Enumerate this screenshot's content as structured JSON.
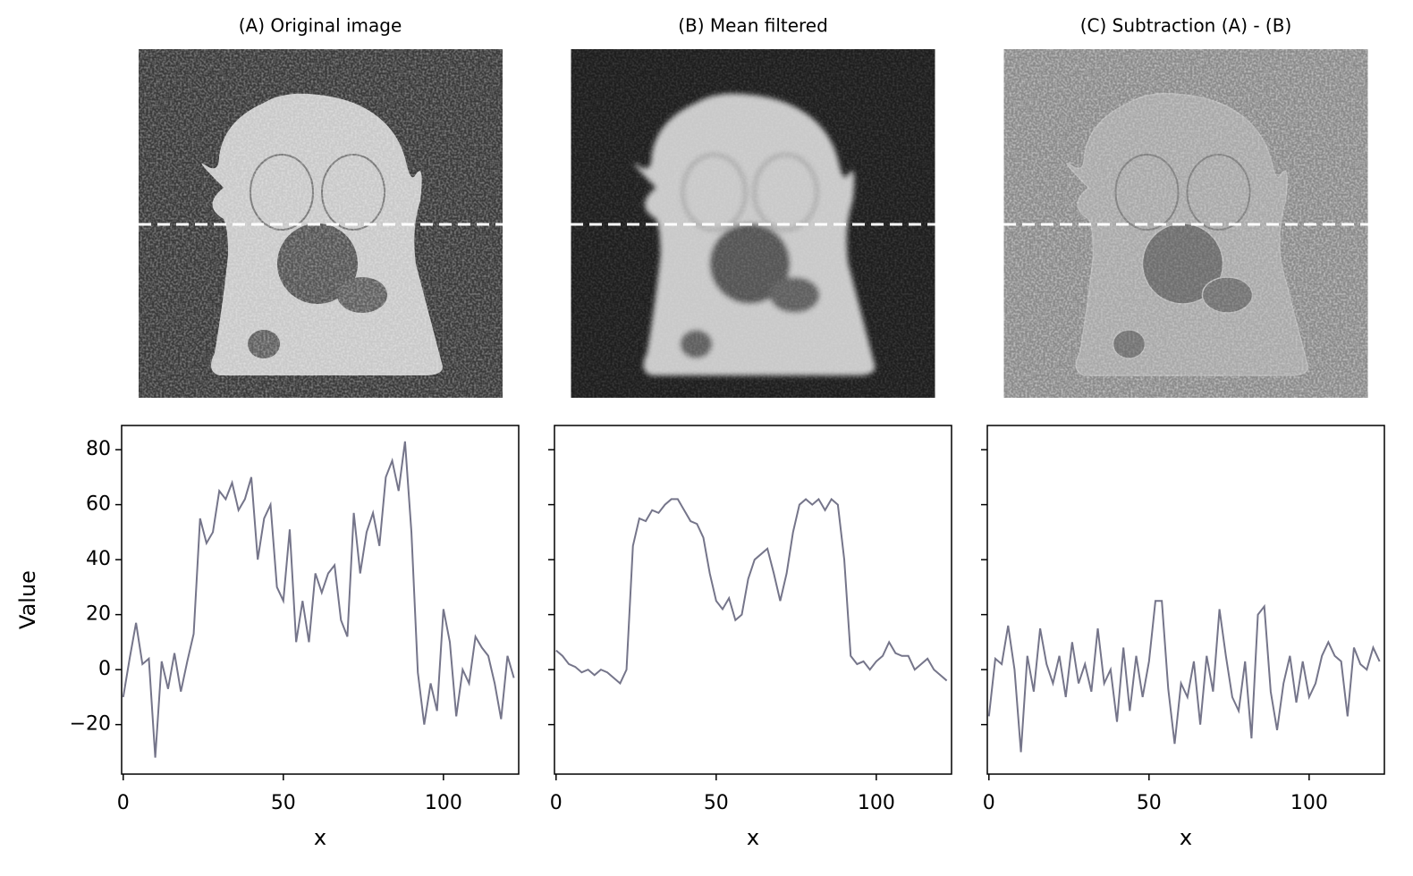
{
  "panels": [
    {
      "title": "(A) Original image"
    },
    {
      "title": "(B) Mean filtered"
    },
    {
      "title": "(C) Subtraction (A) - (B)"
    }
  ],
  "chart_data": [
    {
      "type": "line",
      "xlabel": "x",
      "ylabel": "Value",
      "xlim": [
        -0.5,
        123.5
      ],
      "ylim": [
        -38,
        88.8
      ],
      "xticks": [
        0,
        50,
        100
      ],
      "yticks": [
        {
          "value": -20,
          "label": "−20"
        },
        0,
        20,
        40,
        60,
        80
      ],
      "x": [
        0,
        2,
        4,
        6,
        8,
        10,
        12,
        14,
        16,
        18,
        20,
        22,
        24,
        26,
        28,
        30,
        32,
        34,
        36,
        38,
        40,
        42,
        44,
        46,
        48,
        50,
        52,
        54,
        56,
        58,
        60,
        62,
        64,
        66,
        68,
        70,
        72,
        74,
        76,
        78,
        80,
        82,
        84,
        86,
        88,
        90,
        92,
        94,
        96,
        98,
        100,
        102,
        104,
        106,
        108,
        110,
        112,
        114,
        116,
        118,
        120,
        122
      ],
      "series": [
        {
          "color": "#75758a",
          "values": [
            -10,
            4,
            17,
            2,
            4,
            -32,
            3,
            -7,
            6,
            -8,
            3,
            13,
            55,
            46,
            50,
            65,
            62,
            68,
            58,
            62,
            70,
            40,
            55,
            60,
            30,
            25,
            51,
            10,
            25,
            10,
            35,
            28,
            35,
            38,
            18,
            12,
            57,
            35,
            50,
            57,
            45,
            70,
            76,
            65,
            83,
            50,
            -1,
            -20,
            -5,
            -15,
            22,
            10,
            -17,
            0,
            -5,
            12,
            8,
            5,
            -5,
            -18,
            5,
            -3
          ]
        }
      ]
    },
    {
      "type": "line",
      "xlabel": "x",
      "xlim": [
        -0.5,
        123.5
      ],
      "ylim": [
        -38,
        88.8
      ],
      "xticks": [
        0,
        50,
        100
      ],
      "x": [
        0,
        2,
        4,
        6,
        8,
        10,
        12,
        14,
        16,
        18,
        20,
        22,
        24,
        26,
        28,
        30,
        32,
        34,
        36,
        38,
        40,
        42,
        44,
        46,
        48,
        50,
        52,
        54,
        56,
        58,
        60,
        62,
        64,
        66,
        68,
        70,
        72,
        74,
        76,
        78,
        80,
        82,
        84,
        86,
        88,
        90,
        92,
        94,
        96,
        98,
        100,
        102,
        104,
        106,
        108,
        110,
        112,
        114,
        116,
        118,
        120,
        122
      ],
      "series": [
        {
          "color": "#75758a",
          "values": [
            7,
            5,
            2,
            1,
            -1,
            0,
            -2,
            0,
            -1,
            -3,
            -5,
            0,
            45,
            55,
            54,
            58,
            57,
            60,
            62,
            62,
            58,
            54,
            53,
            48,
            35,
            25,
            22,
            26,
            18,
            20,
            33,
            40,
            42,
            44,
            35,
            25,
            35,
            50,
            60,
            62,
            60,
            62,
            58,
            62,
            60,
            40,
            5,
            2,
            3,
            0,
            3,
            5,
            10,
            6,
            5,
            5,
            0,
            2,
            4,
            0,
            -2,
            -4
          ]
        }
      ]
    },
    {
      "type": "line",
      "xlabel": "x",
      "xlim": [
        -0.5,
        123.5
      ],
      "ylim": [
        -38,
        88.8
      ],
      "xticks": [
        0,
        50,
        100
      ],
      "x": [
        0,
        2,
        4,
        6,
        8,
        10,
        12,
        14,
        16,
        18,
        20,
        22,
        24,
        26,
        28,
        30,
        32,
        34,
        36,
        38,
        40,
        42,
        44,
        46,
        48,
        50,
        52,
        54,
        56,
        58,
        60,
        62,
        64,
        66,
        68,
        70,
        72,
        74,
        76,
        78,
        80,
        82,
        84,
        86,
        88,
        90,
        92,
        94,
        96,
        98,
        100,
        102,
        104,
        106,
        108,
        110,
        112,
        114,
        116,
        118,
        120,
        122
      ],
      "series": [
        {
          "color": "#75758a",
          "values": [
            -17,
            4,
            2,
            16,
            0,
            -30,
            5,
            -8,
            15,
            2,
            -5,
            5,
            -10,
            10,
            -5,
            2,
            -8,
            15,
            -5,
            0,
            -19,
            8,
            -15,
            5,
            -10,
            3,
            25,
            25,
            -7,
            -27,
            -5,
            -10,
            3,
            -20,
            5,
            -8,
            22,
            5,
            -10,
            -15,
            3,
            -25,
            20,
            23,
            -8,
            -22,
            -5,
            5,
            -12,
            3,
            -10,
            -5,
            5,
            10,
            5,
            3,
            -17,
            8,
            2,
            0,
            8,
            3
          ]
        }
      ]
    }
  ]
}
